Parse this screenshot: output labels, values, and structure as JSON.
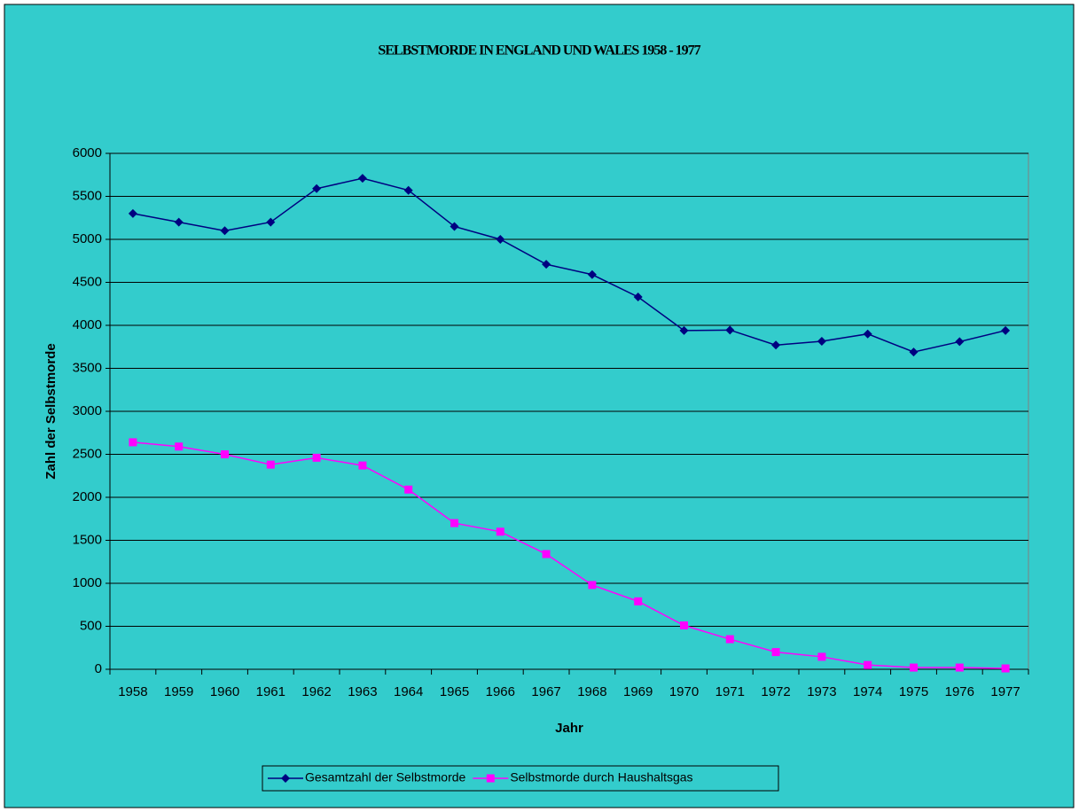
{
  "chart_data": {
    "type": "line",
    "title": "SELBSTMORDE IN ENGLAND UND WALES 1958 - 1977",
    "x_label": "Jahr",
    "y_label": "Zahl der Selbstmorde",
    "categories": [
      "1958",
      "1959",
      "1960",
      "1961",
      "1962",
      "1963",
      "1964",
      "1965",
      "1966",
      "1967",
      "1968",
      "1969",
      "1970",
      "1971",
      "1972",
      "1973",
      "1974",
      "1975",
      "1976",
      "1977"
    ],
    "series": [
      {
        "name": "Gesamtzahl der Selbstmorde",
        "color": "#000080",
        "marker": "diamond",
        "values": [
          5300,
          5200,
          5100,
          5200,
          5590,
          5710,
          5570,
          5150,
          5000,
          4710,
          4590,
          4330,
          3940,
          3945,
          3770,
          3815,
          3900,
          3690,
          3810,
          3940
        ]
      },
      {
        "name": "Selbstmorde durch Haushaltsgas",
        "color": "#ff00ff",
        "marker": "square",
        "values": [
          2640,
          2590,
          2500,
          2380,
          2460,
          2370,
          2090,
          1700,
          1600,
          1340,
          980,
          790,
          510,
          350,
          200,
          145,
          50,
          20,
          20,
          10
        ]
      }
    ],
    "ylim": [
      0,
      6000
    ],
    "yticks": [
      0,
      500,
      1000,
      1500,
      2000,
      2500,
      3000,
      3500,
      4000,
      4500,
      5000,
      5500,
      6000
    ],
    "grid": true,
    "legend": "bottom"
  }
}
